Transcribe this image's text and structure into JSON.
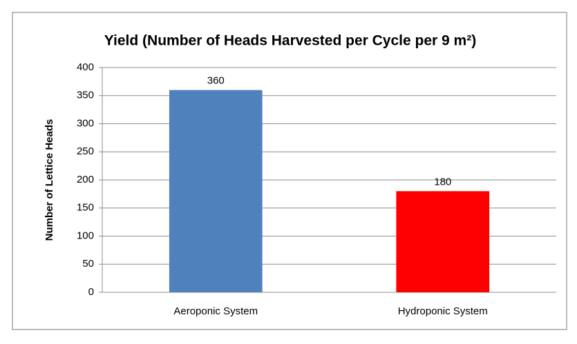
{
  "chart_data": {
    "type": "bar",
    "title": "Yield (Number of Heads Harvested per Cycle per 9 m²)",
    "y_label": "Number of Lettice Heads",
    "categories": [
      "Aeroponic System",
      "Hydroponic System"
    ],
    "values": [
      360,
      180
    ],
    "colors": [
      "#4f81bd",
      "#ff0000"
    ],
    "ylim": [
      0,
      400
    ],
    "yticks": [
      0,
      50,
      100,
      150,
      200,
      250,
      300,
      350,
      400
    ],
    "grid": true
  }
}
